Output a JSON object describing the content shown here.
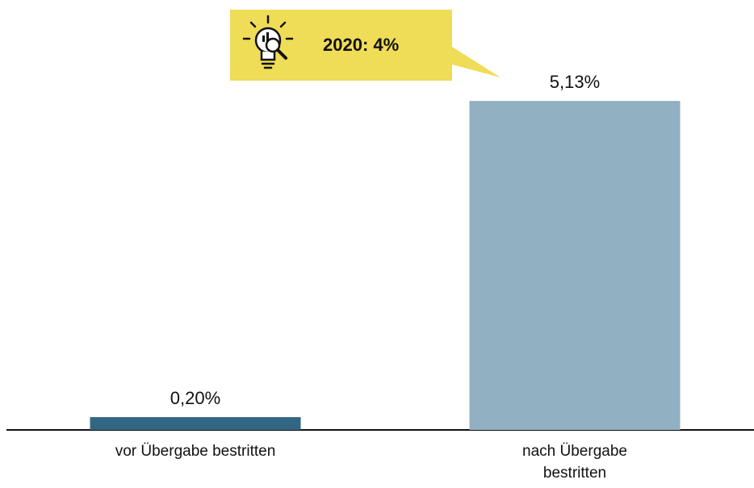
{
  "chart_data": {
    "type": "bar",
    "categories": [
      "vor Übergabe bestritten",
      "nach Übergabe bestritten"
    ],
    "values": [
      0.2,
      5.13
    ],
    "value_labels": [
      "0,20%",
      "5,13%"
    ],
    "colors": [
      "#336683",
      "#91b0c1"
    ],
    "ylim": [
      0,
      6
    ],
    "annotation": "2020: 4%"
  }
}
